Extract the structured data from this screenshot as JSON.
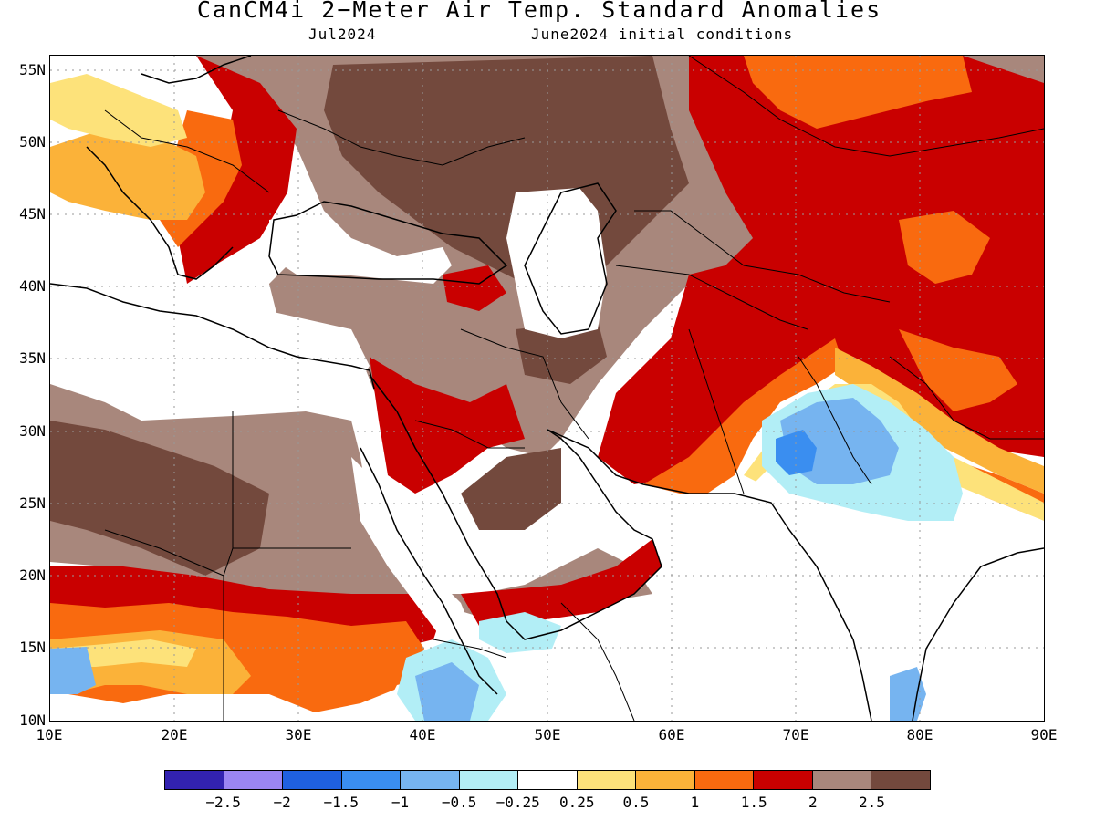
{
  "title": "CanCM4i 2−Meter Air Temp. Standard Anomalies",
  "subtitle_left": "Jul2024",
  "subtitle_right": "June2024 initial conditions",
  "lat_labels": [
    "55N",
    "50N",
    "45N",
    "40N",
    "35N",
    "30N",
    "25N",
    "20N",
    "15N",
    "10N"
  ],
  "lon_labels": [
    "10E",
    "20E",
    "30E",
    "40E",
    "50E",
    "60E",
    "70E",
    "80E",
    "90E"
  ],
  "colorbar": {
    "colors": [
      "#3222b0",
      "#9b85f2",
      "#1f60e0",
      "#3a8ef0",
      "#76b4f0",
      "#b2eef6",
      "#ffffff",
      "#fde27a",
      "#fbb239",
      "#f96a0f",
      "#c90000",
      "#a8877c",
      "#73493d"
    ],
    "labels": [
      "−2.5",
      "−2",
      "−1.5",
      "−1",
      "−0.5",
      "−0.25",
      "0.25",
      "0.5",
      "1",
      "1.5",
      "2",
      "2.5"
    ]
  }
}
